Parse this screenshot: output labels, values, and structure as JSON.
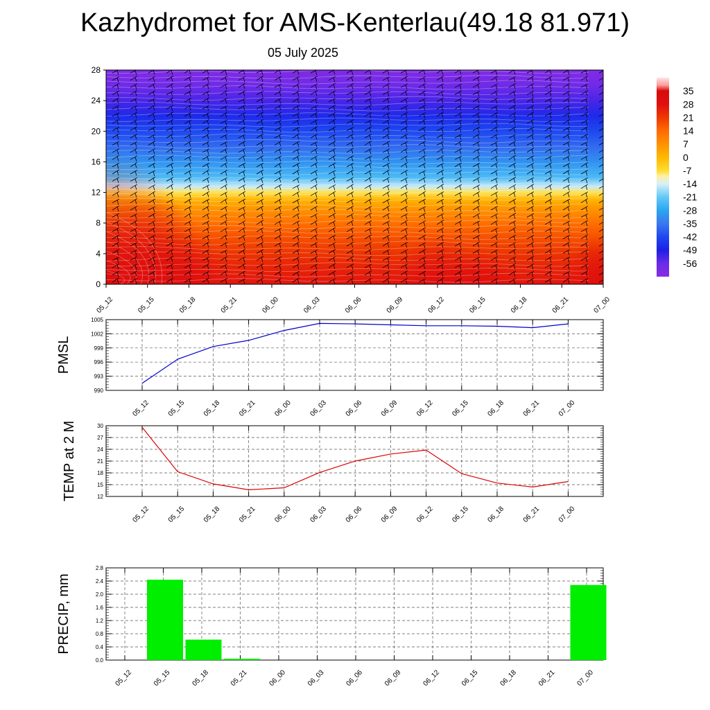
{
  "header": {
    "title": "Kazhydromet for AMS-Kenterlau(49.18 81.971)",
    "date": "05 July 2025"
  },
  "colors": {
    "pmsl_line": "#0000cc",
    "temp_line": "#dd0000",
    "precip_bar": "#00ee00",
    "barb": "#000000"
  },
  "chart_data": [
    {
      "type": "heatmap",
      "x_ticks": [
        "05_12",
        "05_15",
        "05_18",
        "05_21",
        "06_00",
        "06_03",
        "06_06",
        "06_09",
        "06_12",
        "06_15",
        "06_18",
        "06_21",
        "07_00"
      ],
      "yticks": [
        0,
        4,
        8,
        12,
        16,
        20,
        24,
        28
      ],
      "ylim": [
        0,
        28
      ],
      "colorbar": {
        "labels": [
          "35",
          "28",
          "21",
          "14",
          "7",
          "0",
          "-7",
          "-14",
          "-21",
          "-28",
          "-35",
          "-42",
          "-49",
          "-56"
        ],
        "range": [
          -63,
          42
        ],
        "stops": [
          {
            "v": -63,
            "c": "#8a2be2"
          },
          {
            "v": -56,
            "c": "#6a2be8"
          },
          {
            "v": -49,
            "c": "#1e1ee6"
          },
          {
            "v": -42,
            "c": "#1e48f0"
          },
          {
            "v": -35,
            "c": "#3a78ee"
          },
          {
            "v": -28,
            "c": "#2aa6f2"
          },
          {
            "v": -21,
            "c": "#64c8f8"
          },
          {
            "v": -14,
            "c": "#d8f0fa"
          },
          {
            "v": -10,
            "c": "#fff0a0"
          },
          {
            "v": -7,
            "c": "#ffdc30"
          },
          {
            "v": 0,
            "c": "#ffb800"
          },
          {
            "v": 7,
            "c": "#ff9100"
          },
          {
            "v": 14,
            "c": "#ff6a00"
          },
          {
            "v": 21,
            "c": "#ee3a00"
          },
          {
            "v": 28,
            "c": "#e01010"
          },
          {
            "v": 35,
            "c": "#d80a0a"
          },
          {
            "v": 38,
            "c": "#ff9a9a"
          },
          {
            "v": 42,
            "c": "#ffe4e4"
          }
        ]
      },
      "field_profile": [
        {
          "level": 0,
          "value": 27
        },
        {
          "level": 2,
          "value": 25
        },
        {
          "level": 4,
          "value": 22
        },
        {
          "level": 6,
          "value": 18
        },
        {
          "level": 8,
          "value": 13
        },
        {
          "level": 10,
          "value": 6
        },
        {
          "level": 11,
          "value": 1
        },
        {
          "level": 12,
          "value": -8
        },
        {
          "level": 12.8,
          "value": -15
        },
        {
          "level": 14,
          "value": -24
        },
        {
          "level": 16,
          "value": -31
        },
        {
          "level": 18,
          "value": -37
        },
        {
          "level": 20,
          "value": -42
        },
        {
          "level": 22,
          "value": -47
        },
        {
          "level": 24,
          "value": -53
        },
        {
          "level": 26,
          "value": -57
        },
        {
          "level": 28,
          "value": -61
        }
      ],
      "surface_anomaly": [
        8,
        5,
        2,
        0,
        0,
        0,
        0,
        0,
        2,
        1,
        0,
        0,
        2
      ]
    },
    {
      "type": "line",
      "ylabel": "PMSL",
      "x": [
        "05_12",
        "05_15",
        "05_18",
        "05_21",
        "06_00",
        "06_03",
        "06_06",
        "06_09",
        "06_12",
        "06_15",
        "06_18",
        "06_21",
        "07_00"
      ],
      "series": [
        {
          "values": [
            991.5,
            996.6,
            999.3,
            1000.6,
            1002.7,
            1004.2,
            1004.1,
            1003.9,
            1003.7,
            1003.7,
            1003.6,
            1003.3,
            1004.1
          ]
        }
      ],
      "ylim": [
        990,
        1005
      ],
      "yticks": [
        "990",
        "993",
        "996",
        "999",
        "1002",
        "1005"
      ],
      "grid": true
    },
    {
      "type": "line",
      "ylabel": "TEMP at 2 M",
      "x": [
        "05_12",
        "05_15",
        "05_18",
        "05_21",
        "06_00",
        "06_03",
        "06_06",
        "06_09",
        "06_12",
        "06_15",
        "06_18",
        "06_21",
        "07_00"
      ],
      "series": [
        {
          "values": [
            29.6,
            18.3,
            15.2,
            13.7,
            14.2,
            18.1,
            21.0,
            22.8,
            23.8,
            17.8,
            15.4,
            14.4,
            15.8
          ]
        }
      ],
      "ylim": [
        12,
        30
      ],
      "yticks": [
        "12",
        "15",
        "18",
        "21",
        "24",
        "27",
        "30"
      ],
      "grid": true
    },
    {
      "type": "bar",
      "ylabel": "PRECIP, mm",
      "categories": [
        "05_12",
        "05_15",
        "05_18",
        "05_21",
        "06_00",
        "06_03",
        "06_06",
        "06_09",
        "06_12",
        "06_15",
        "06_18",
        "06_21",
        "07_00"
      ],
      "values": [
        0,
        2.44,
        0.62,
        0.04,
        0,
        0,
        0,
        0,
        0,
        0,
        0,
        0,
        2.28
      ],
      "ylim": [
        0,
        2.8
      ],
      "yticks": [
        "0.0",
        "0.4",
        "0.8",
        "1.2",
        "1.6",
        "2.0",
        "2.4",
        "2.8"
      ],
      "grid": true
    }
  ]
}
